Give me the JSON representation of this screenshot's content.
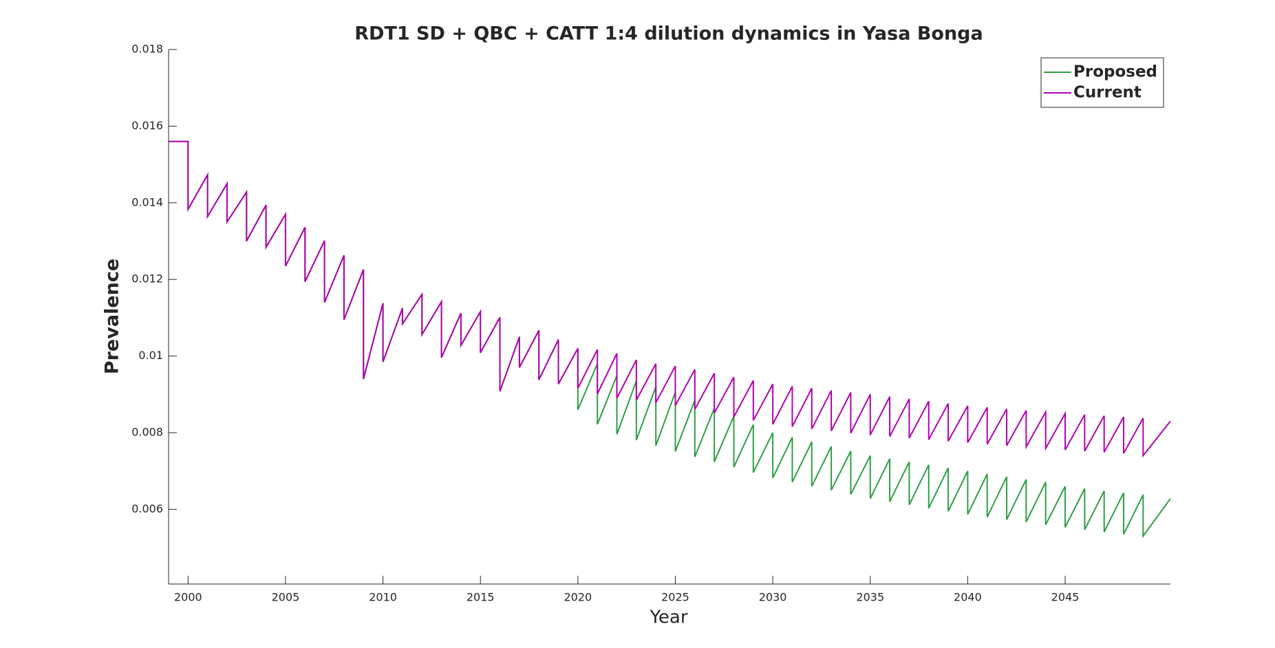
{
  "chart_data": {
    "type": "line",
    "title": "RDT1 SD + QBC + CATT 1:4 dilution dynamics in Yasa Bonga",
    "x_label": "Year",
    "y_label": "Prevalence",
    "xlim": [
      1999,
      2050.4
    ],
    "ylim": [
      0.00405,
      0.018
    ],
    "xticks": [
      2000,
      2005,
      2010,
      2015,
      2020,
      2025,
      2030,
      2035,
      2040,
      2045
    ],
    "yticks": [
      0.006,
      0.008,
      0.01,
      0.012,
      0.014,
      0.016,
      0.018
    ],
    "legend": "top-right",
    "x": [
      1999,
      2000,
      2000,
      2001,
      2001,
      2002,
      2002,
      2003,
      2003,
      2004,
      2004,
      2005,
      2005,
      2006,
      2006,
      2007,
      2007,
      2008,
      2008,
      2009,
      2009,
      2010,
      2010,
      2011,
      2011,
      2012,
      2012,
      2013,
      2013,
      2014,
      2014,
      2015,
      2015,
      2016,
      2016,
      2017,
      2017,
      2018,
      2018,
      2019,
      2019,
      2020,
      2020,
      2021,
      2021,
      2022,
      2022,
      2023,
      2023,
      2024,
      2024,
      2025,
      2025,
      2026,
      2026,
      2027,
      2027,
      2028,
      2028,
      2029,
      2029,
      2030,
      2030,
      2031,
      2031,
      2032,
      2032,
      2033,
      2033,
      2034,
      2034,
      2035,
      2035,
      2036,
      2036,
      2037,
      2037,
      2038,
      2038,
      2039,
      2039,
      2040,
      2040,
      2041,
      2041,
      2042,
      2042,
      2043,
      2043,
      2044,
      2044,
      2045,
      2045,
      2046,
      2046,
      2047,
      2047,
      2048,
      2048,
      2049,
      2049,
      2050.4
    ],
    "series": [
      {
        "name": "Proposed",
        "color": "#2e9e45",
        "values": [
          0.0156,
          0.0156,
          0.01383,
          0.01473,
          0.01364,
          0.0145,
          0.0135,
          0.01428,
          0.013,
          0.01394,
          0.01284,
          0.0137,
          0.01235,
          0.01336,
          0.01194,
          0.01301,
          0.0114,
          0.01263,
          0.01095,
          0.01226,
          0.0094,
          0.01138,
          0.00985,
          0.01125,
          0.01084,
          0.01161,
          0.01056,
          0.01142,
          0.00996,
          0.01112,
          0.01028,
          0.01116,
          0.01009,
          0.01101,
          0.00908,
          0.0105,
          0.0097,
          0.01067,
          0.00938,
          0.01043,
          0.00927,
          0.0102,
          0.0086,
          0.0098,
          0.00822,
          0.00949,
          0.00796,
          0.00935,
          0.00781,
          0.0092,
          0.00766,
          0.00906,
          0.00751,
          0.00885,
          0.00737,
          0.00864,
          0.00724,
          0.00843,
          0.0071,
          0.00821,
          0.00696,
          0.008,
          0.00682,
          0.00788,
          0.00671,
          0.00776,
          0.0066,
          0.00764,
          0.0065,
          0.00752,
          0.00639,
          0.0074,
          0.00628,
          0.00732,
          0.0062,
          0.00724,
          0.00612,
          0.00716,
          0.00603,
          0.00708,
          0.00595,
          0.007,
          0.00587,
          0.00692,
          0.0058,
          0.00685,
          0.00573,
          0.00678,
          0.00567,
          0.00671,
          0.0056,
          0.0066,
          0.00553,
          0.00654,
          0.00547,
          0.00648,
          0.00541,
          0.00643,
          0.00535,
          0.00638,
          0.0053,
          0.00628
        ]
      },
      {
        "name": "Current",
        "color": "#b000b0",
        "values": [
          0.0156,
          0.0156,
          0.01383,
          0.01473,
          0.01364,
          0.0145,
          0.0135,
          0.01428,
          0.013,
          0.01394,
          0.01284,
          0.0137,
          0.01235,
          0.01336,
          0.01194,
          0.01301,
          0.0114,
          0.01263,
          0.01095,
          0.01226,
          0.0094,
          0.01138,
          0.00985,
          0.01125,
          0.01084,
          0.01161,
          0.01056,
          0.01142,
          0.00996,
          0.01112,
          0.01028,
          0.01116,
          0.01009,
          0.01101,
          0.00908,
          0.0105,
          0.0097,
          0.01067,
          0.00938,
          0.01043,
          0.00927,
          0.0102,
          0.00916,
          0.01017,
          0.00901,
          0.01007,
          0.0089,
          0.0099,
          0.00885,
          0.0098,
          0.00878,
          0.00974,
          0.00871,
          0.00965,
          0.00861,
          0.00955,
          0.00851,
          0.00945,
          0.00841,
          0.00936,
          0.00832,
          0.00927,
          0.00822,
          0.00921,
          0.00816,
          0.00916,
          0.0081,
          0.0091,
          0.00805,
          0.00905,
          0.00799,
          0.009,
          0.00794,
          0.00894,
          0.0079,
          0.00888,
          0.00786,
          0.00882,
          0.00782,
          0.00876,
          0.00778,
          0.0087,
          0.00774,
          0.00866,
          0.0077,
          0.00862,
          0.00766,
          0.00858,
          0.00763,
          0.00854,
          0.00759,
          0.0085,
          0.00755,
          0.00847,
          0.00752,
          0.00844,
          0.00749,
          0.00841,
          0.00746,
          0.00838,
          0.0074,
          0.0083
        ]
      }
    ]
  }
}
